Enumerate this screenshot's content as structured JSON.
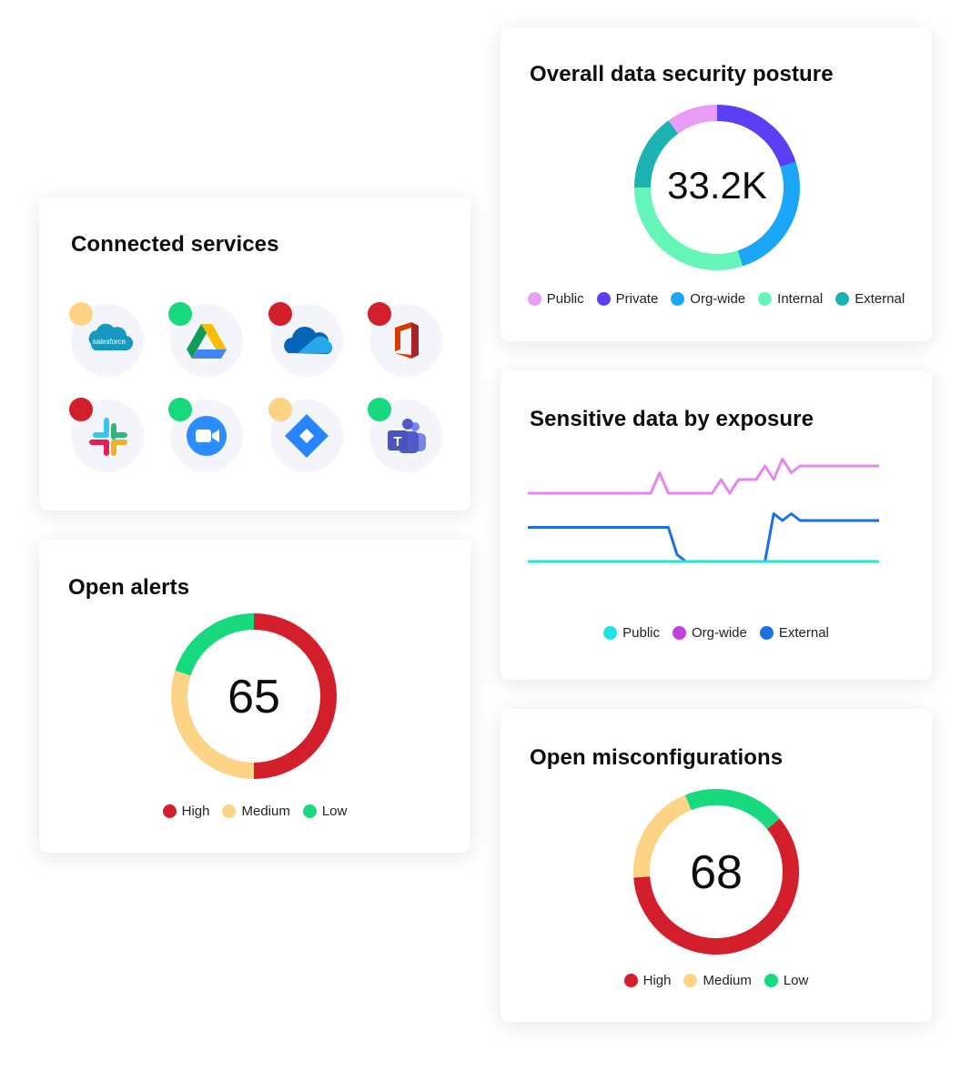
{
  "colors": {
    "high": "#d21f2b",
    "medium": "#fdd486",
    "low": "#17d97e",
    "public": "#e89cf5",
    "private": "#5a3ff5",
    "orgwide": "#1aa7f7",
    "internal": "#66f5b9",
    "external": "#1bb3b1",
    "line_public": "#1ee3e3",
    "line_orgwide": "#c43ddf",
    "line_external": "#1c6fe6",
    "line_orgwide_stroke": "#e586f0"
  },
  "posture": {
    "title": "Overall data security posture",
    "value": "33.2K",
    "legend": [
      "Public",
      "Private",
      "Org-wide",
      "Internal",
      "External"
    ]
  },
  "exposure": {
    "title": "Sensitive data by exposure",
    "legend": [
      "Public",
      "Org-wide",
      "External"
    ]
  },
  "misconfig": {
    "title": "Open misconfigurations",
    "value": "68",
    "legend": [
      "High",
      "Medium",
      "Low"
    ]
  },
  "services": {
    "title": "Connected services",
    "salesforce_label": "salesforce",
    "items": [
      {
        "name": "salesforce",
        "status": "medium"
      },
      {
        "name": "google-drive",
        "status": "low"
      },
      {
        "name": "onedrive",
        "status": "high"
      },
      {
        "name": "office",
        "status": "high"
      },
      {
        "name": "slack",
        "status": "high"
      },
      {
        "name": "zoom",
        "status": "low"
      },
      {
        "name": "jira",
        "status": "medium"
      },
      {
        "name": "teams",
        "status": "low"
      }
    ]
  },
  "alerts": {
    "title": "Open alerts",
    "value": "65",
    "legend": [
      "High",
      "Medium",
      "Low"
    ]
  },
  "chart_data": [
    {
      "type": "pie",
      "title": "Overall data security posture",
      "center_label": "33.2K",
      "categories": [
        "Public",
        "Private",
        "Org-wide",
        "Internal",
        "External"
      ],
      "values": [
        10,
        20,
        25,
        30,
        15
      ]
    },
    {
      "type": "line",
      "title": "Sensitive data by exposure",
      "x": [
        0,
        1,
        2,
        3,
        4,
        5,
        6,
        7,
        8,
        9,
        10,
        11,
        12,
        13,
        14,
        15,
        16,
        17,
        18,
        19,
        20,
        21,
        22,
        23,
        24,
        25,
        26,
        27,
        28,
        29,
        30,
        31,
        32,
        33,
        34,
        35,
        36,
        37,
        38,
        39,
        40
      ],
      "series": [
        {
          "name": "Org-wide",
          "values": [
            7,
            7,
            7,
            7,
            7,
            7,
            7,
            7,
            7,
            7,
            7,
            7,
            7,
            7,
            7,
            8.5,
            7,
            7,
            7,
            7,
            7,
            7,
            8,
            7,
            8,
            8,
            8,
            9,
            8,
            9.5,
            8.5,
            9,
            9,
            9,
            9,
            9,
            9,
            9,
            9,
            9,
            9
          ]
        },
        {
          "name": "External",
          "values": [
            4.5,
            4.5,
            4.5,
            4.5,
            4.5,
            4.5,
            4.5,
            4.5,
            4.5,
            4.5,
            4.5,
            4.5,
            4.5,
            4.5,
            4.5,
            4.5,
            4.5,
            2.5,
            2,
            2,
            2,
            2,
            2,
            2,
            2,
            2,
            2,
            2,
            5.5,
            5,
            5.5,
            5,
            5,
            5,
            5,
            5,
            5,
            5,
            5,
            5,
            5
          ]
        },
        {
          "name": "Public",
          "values": [
            2,
            2,
            2,
            2,
            2,
            2,
            2,
            2,
            2,
            2,
            2,
            2,
            2,
            2,
            2,
            2,
            2,
            2,
            2,
            2,
            2,
            2,
            2,
            2,
            2,
            2,
            2,
            2,
            2,
            2,
            2,
            2,
            2,
            2,
            2,
            2,
            2,
            2,
            2,
            2,
            2
          ]
        }
      ]
    },
    {
      "type": "pie",
      "title": "Open misconfigurations",
      "center_label": "68",
      "categories": [
        "High",
        "Medium",
        "Low"
      ],
      "values": [
        60,
        20,
        20
      ]
    },
    {
      "type": "pie",
      "title": "Open alerts",
      "center_label": "65",
      "categories": [
        "High",
        "Medium",
        "Low"
      ],
      "values": [
        50,
        30,
        20
      ]
    }
  ]
}
